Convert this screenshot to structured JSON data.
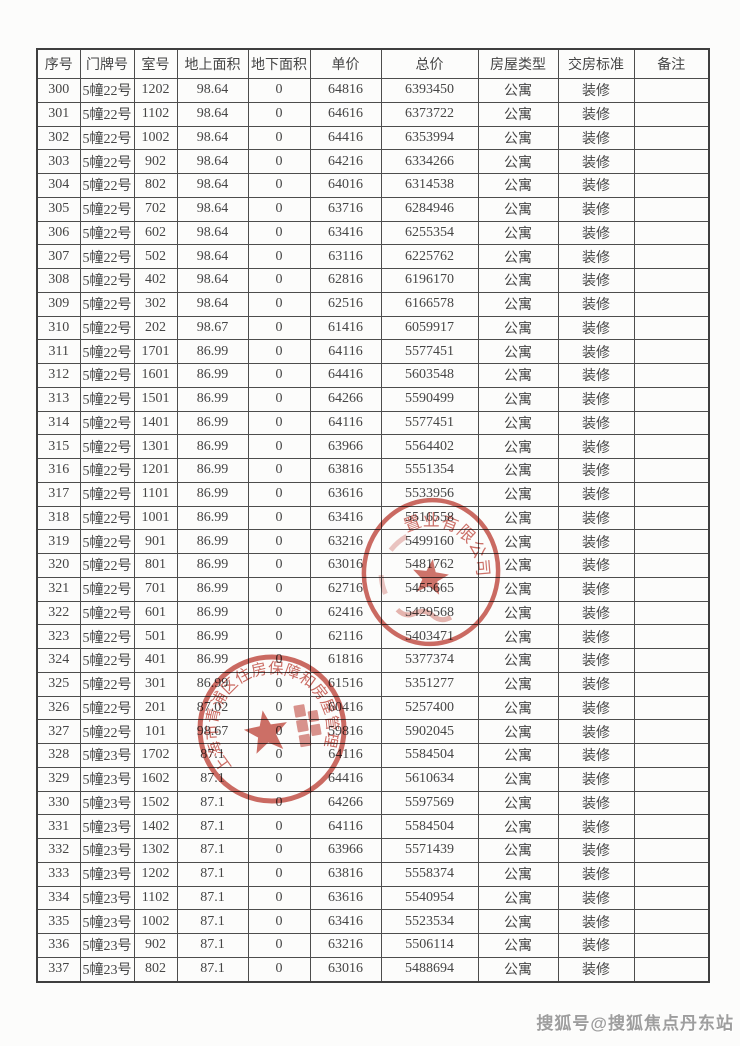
{
  "table": {
    "headers": [
      "序号",
      "门牌号",
      "室号",
      "地上面积",
      "地下面积",
      "单价",
      "总价",
      "房屋类型",
      "交房标准",
      "备注"
    ],
    "header_keys": [
      "serial",
      "door-no",
      "room-no",
      "area-above",
      "area-below",
      "unit-price",
      "total-price",
      "house-type",
      "delivery-standard",
      "remark"
    ],
    "rows": [
      [
        "300",
        "5幢22号",
        "1202",
        "98.64",
        "0",
        "64816",
        "6393450",
        "公寓",
        "装修",
        ""
      ],
      [
        "301",
        "5幢22号",
        "1102",
        "98.64",
        "0",
        "64616",
        "6373722",
        "公寓",
        "装修",
        ""
      ],
      [
        "302",
        "5幢22号",
        "1002",
        "98.64",
        "0",
        "64416",
        "6353994",
        "公寓",
        "装修",
        ""
      ],
      [
        "303",
        "5幢22号",
        "902",
        "98.64",
        "0",
        "64216",
        "6334266",
        "公寓",
        "装修",
        ""
      ],
      [
        "304",
        "5幢22号",
        "802",
        "98.64",
        "0",
        "64016",
        "6314538",
        "公寓",
        "装修",
        ""
      ],
      [
        "305",
        "5幢22号",
        "702",
        "98.64",
        "0",
        "63716",
        "6284946",
        "公寓",
        "装修",
        ""
      ],
      [
        "306",
        "5幢22号",
        "602",
        "98.64",
        "0",
        "63416",
        "6255354",
        "公寓",
        "装修",
        ""
      ],
      [
        "307",
        "5幢22号",
        "502",
        "98.64",
        "0",
        "63116",
        "6225762",
        "公寓",
        "装修",
        ""
      ],
      [
        "308",
        "5幢22号",
        "402",
        "98.64",
        "0",
        "62816",
        "6196170",
        "公寓",
        "装修",
        ""
      ],
      [
        "309",
        "5幢22号",
        "302",
        "98.64",
        "0",
        "62516",
        "6166578",
        "公寓",
        "装修",
        ""
      ],
      [
        "310",
        "5幢22号",
        "202",
        "98.67",
        "0",
        "61416",
        "6059917",
        "公寓",
        "装修",
        ""
      ],
      [
        "311",
        "5幢22号",
        "1701",
        "86.99",
        "0",
        "64116",
        "5577451",
        "公寓",
        "装修",
        ""
      ],
      [
        "312",
        "5幢22号",
        "1601",
        "86.99",
        "0",
        "64416",
        "5603548",
        "公寓",
        "装修",
        ""
      ],
      [
        "313",
        "5幢22号",
        "1501",
        "86.99",
        "0",
        "64266",
        "5590499",
        "公寓",
        "装修",
        ""
      ],
      [
        "314",
        "5幢22号",
        "1401",
        "86.99",
        "0",
        "64116",
        "5577451",
        "公寓",
        "装修",
        ""
      ],
      [
        "315",
        "5幢22号",
        "1301",
        "86.99",
        "0",
        "63966",
        "5564402",
        "公寓",
        "装修",
        ""
      ],
      [
        "316",
        "5幢22号",
        "1201",
        "86.99",
        "0",
        "63816",
        "5551354",
        "公寓",
        "装修",
        ""
      ],
      [
        "317",
        "5幢22号",
        "1101",
        "86.99",
        "0",
        "63616",
        "5533956",
        "公寓",
        "装修",
        ""
      ],
      [
        "318",
        "5幢22号",
        "1001",
        "86.99",
        "0",
        "63416",
        "5516558",
        "公寓",
        "装修",
        ""
      ],
      [
        "319",
        "5幢22号",
        "901",
        "86.99",
        "0",
        "63216",
        "5499160",
        "公寓",
        "装修",
        ""
      ],
      [
        "320",
        "5幢22号",
        "801",
        "86.99",
        "0",
        "63016",
        "5481762",
        "公寓",
        "装修",
        ""
      ],
      [
        "321",
        "5幢22号",
        "701",
        "86.99",
        "0",
        "62716",
        "5455665",
        "公寓",
        "装修",
        ""
      ],
      [
        "322",
        "5幢22号",
        "601",
        "86.99",
        "0",
        "62416",
        "5429568",
        "公寓",
        "装修",
        ""
      ],
      [
        "323",
        "5幢22号",
        "501",
        "86.99",
        "0",
        "62116",
        "5403471",
        "公寓",
        "装修",
        ""
      ],
      [
        "324",
        "5幢22号",
        "401",
        "86.99",
        "0",
        "61816",
        "5377374",
        "公寓",
        "装修",
        ""
      ],
      [
        "325",
        "5幢22号",
        "301",
        "86.99",
        "0",
        "61516",
        "5351277",
        "公寓",
        "装修",
        ""
      ],
      [
        "326",
        "5幢22号",
        "201",
        "87.02",
        "0",
        "60416",
        "5257400",
        "公寓",
        "装修",
        ""
      ],
      [
        "327",
        "5幢22号",
        "101",
        "98.67",
        "0",
        "59816",
        "5902045",
        "公寓",
        "装修",
        ""
      ],
      [
        "328",
        "5幢23号",
        "1702",
        "87.1",
        "0",
        "64116",
        "5584504",
        "公寓",
        "装修",
        ""
      ],
      [
        "329",
        "5幢23号",
        "1602",
        "87.1",
        "0",
        "64416",
        "5610634",
        "公寓",
        "装修",
        ""
      ],
      [
        "330",
        "5幢23号",
        "1502",
        "87.1",
        "0",
        "64266",
        "5597569",
        "公寓",
        "装修",
        ""
      ],
      [
        "331",
        "5幢23号",
        "1402",
        "87.1",
        "0",
        "64116",
        "5584504",
        "公寓",
        "装修",
        ""
      ],
      [
        "332",
        "5幢23号",
        "1302",
        "87.1",
        "0",
        "63966",
        "5571439",
        "公寓",
        "装修",
        ""
      ],
      [
        "333",
        "5幢23号",
        "1202",
        "87.1",
        "0",
        "63816",
        "5558374",
        "公寓",
        "装修",
        ""
      ],
      [
        "334",
        "5幢23号",
        "1102",
        "87.1",
        "0",
        "63616",
        "5540954",
        "公寓",
        "装修",
        ""
      ],
      [
        "335",
        "5幢23号",
        "1002",
        "87.1",
        "0",
        "63416",
        "5523534",
        "公寓",
        "装修",
        ""
      ],
      [
        "336",
        "5幢23号",
        "902",
        "87.1",
        "0",
        "63216",
        "5506114",
        "公寓",
        "装修",
        ""
      ],
      [
        "337",
        "5幢23号",
        "802",
        "87.1",
        "0",
        "63016",
        "5488694",
        "公寓",
        "装修",
        ""
      ]
    ]
  },
  "stamps": {
    "company_seal": {
      "arc_text": "置业有限公司",
      "color": "#c0443a"
    },
    "government_seal": {
      "arc_text": "上海市青浦区住房保障和房屋管理局",
      "color": "#c0443a"
    }
  },
  "watermark": {
    "text": "搜狐号@搜狐焦点丹东站",
    "color": "#9e9e9e"
  }
}
